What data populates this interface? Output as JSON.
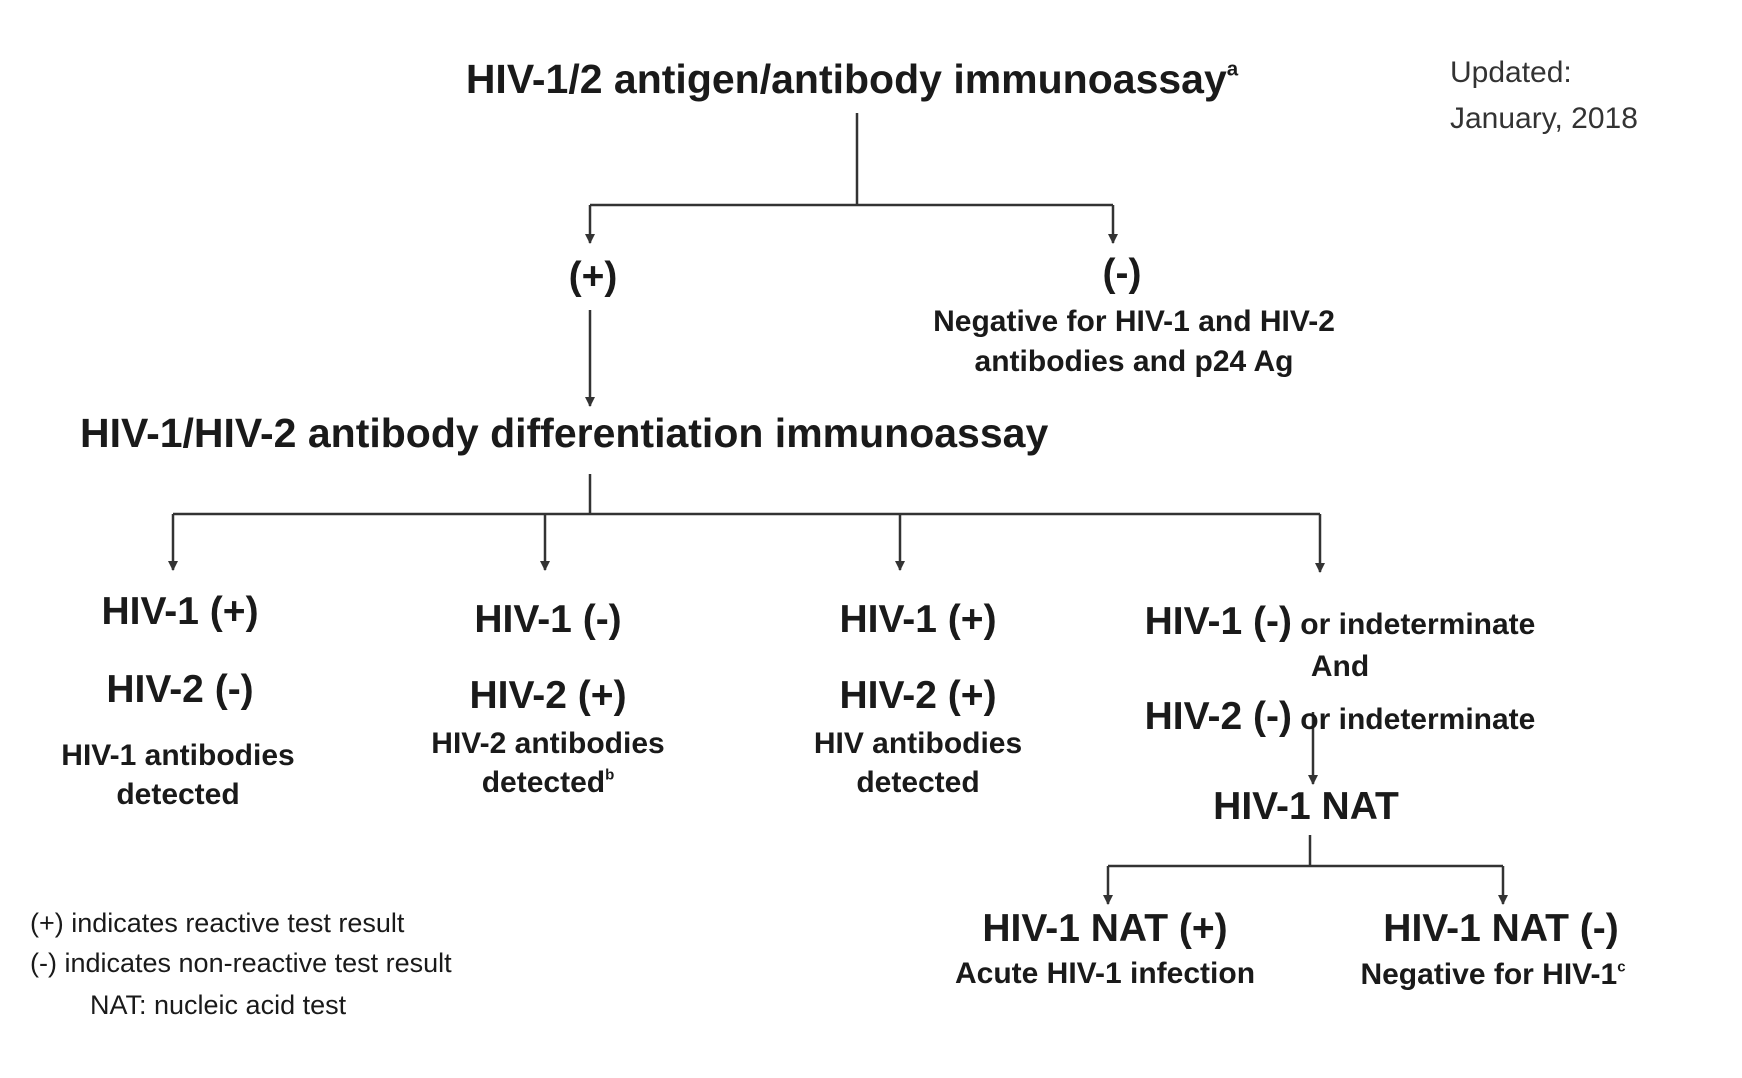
{
  "updated": {
    "line1": "Updated:",
    "line2": "January, 2018"
  },
  "step1": {
    "title": "HIV-1/2 antigen/antibody immunoassay",
    "footnote": "a"
  },
  "step1_positive": {
    "label": "(+)"
  },
  "step1_negative": {
    "label": "(-)",
    "desc_line1": "Negative for HIV-1  and HIV-2",
    "desc_line2": "antibodies and p24 Ag"
  },
  "step2": {
    "title": "HIV-1/HIV-2 antibody differentiation immunoassay"
  },
  "outcomes": [
    {
      "hiv1": "HIV-1 (+)",
      "hiv2": "HIV-2 (-)",
      "desc_line1": "HIV-1  antibodies",
      "desc_line2": "detected",
      "footnote": ""
    },
    {
      "hiv1": "HIV-1 (-)",
      "hiv2": "HIV-2 (+)",
      "desc_line1": "HIV-2  antibodies",
      "desc_line2": "detected",
      "footnote": "b"
    },
    {
      "hiv1": "HIV-1 (+)",
      "hiv2": "HIV-2 (+)",
      "desc_line1": "HIV  antibodies",
      "desc_line2": "detected",
      "footnote": ""
    }
  ],
  "indeterminate": {
    "hiv1": "HIV-1 (-)",
    "hiv1_suffix": " or indeterminate",
    "and": "And",
    "hiv2": "HIV-2 (-)",
    "hiv2_suffix": " or indeterminate"
  },
  "nat": {
    "title": "HIV-1 NAT",
    "positive": {
      "label": "HIV-1 NAT (+)",
      "desc": "Acute HIV-1  infection"
    },
    "negative": {
      "label": "HIV-1 NAT (-)",
      "desc": "Negative for HIV-1",
      "footnote": "c"
    }
  },
  "legend": {
    "line1": "(+) indicates reactive test result",
    "line2": "(-)  indicates non-reactive test result",
    "line3": "NAT:  nucleic acid test"
  },
  "colors": {
    "line": "#333333",
    "text": "#1a1a1a"
  }
}
